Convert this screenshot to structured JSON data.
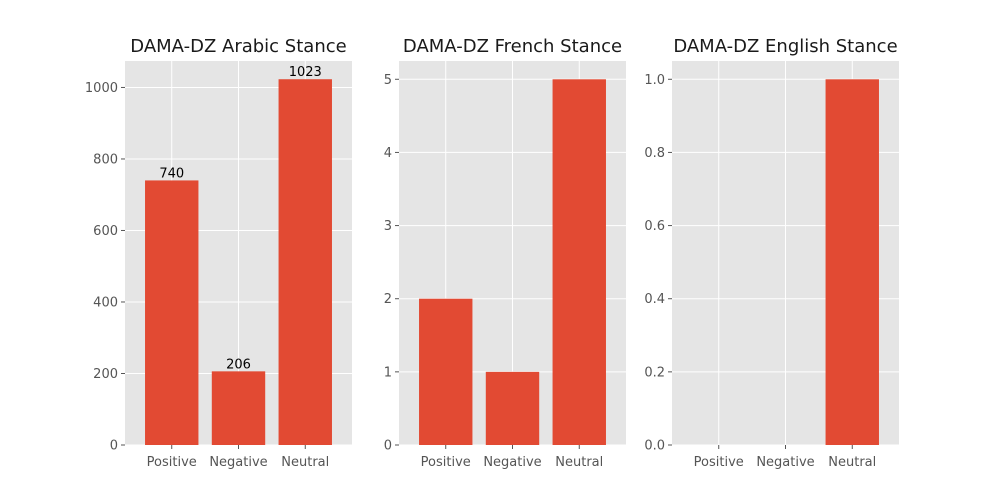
{
  "chart_data": [
    {
      "type": "bar",
      "title": "DAMA-DZ Arabic Stance",
      "categories": [
        "Positive",
        "Negative",
        "Neutral"
      ],
      "values": [
        740,
        206,
        1023
      ],
      "data_labels": [
        "740",
        "206",
        "1023"
      ],
      "ylim": [
        0,
        1074
      ],
      "yticks": [
        0,
        200,
        400,
        600,
        800,
        1000
      ],
      "ytick_labels": [
        "0",
        "200",
        "400",
        "600",
        "800",
        "1000"
      ],
      "grid": true
    },
    {
      "type": "bar",
      "title": "DAMA-DZ French Stance",
      "categories": [
        "Positive",
        "Negative",
        "Neutral"
      ],
      "values": [
        2,
        1,
        5
      ],
      "data_labels": [],
      "ylim": [
        0,
        5.25
      ],
      "yticks": [
        0,
        1,
        2,
        3,
        4,
        5
      ],
      "ytick_labels": [
        "0",
        "1",
        "2",
        "3",
        "4",
        "5"
      ],
      "grid": true
    },
    {
      "type": "bar",
      "title": "DAMA-DZ English Stance",
      "categories": [
        "Positive",
        "Negative",
        "Neutral"
      ],
      "values": [
        0,
        0,
        1
      ],
      "data_labels": [],
      "ylim": [
        0,
        1.05
      ],
      "yticks": [
        0,
        0.2,
        0.4,
        0.6,
        0.8,
        1.0
      ],
      "ytick_labels": [
        "0.0",
        "0.2",
        "0.4",
        "0.6",
        "0.8",
        "1.0"
      ],
      "grid": true
    }
  ],
  "colors": {
    "bar": "#E24A33",
    "panel_bg": "#E5E5E5",
    "grid": "#FFFFFF",
    "tick_text": "#555555",
    "title_text": "#1A1A1A"
  }
}
